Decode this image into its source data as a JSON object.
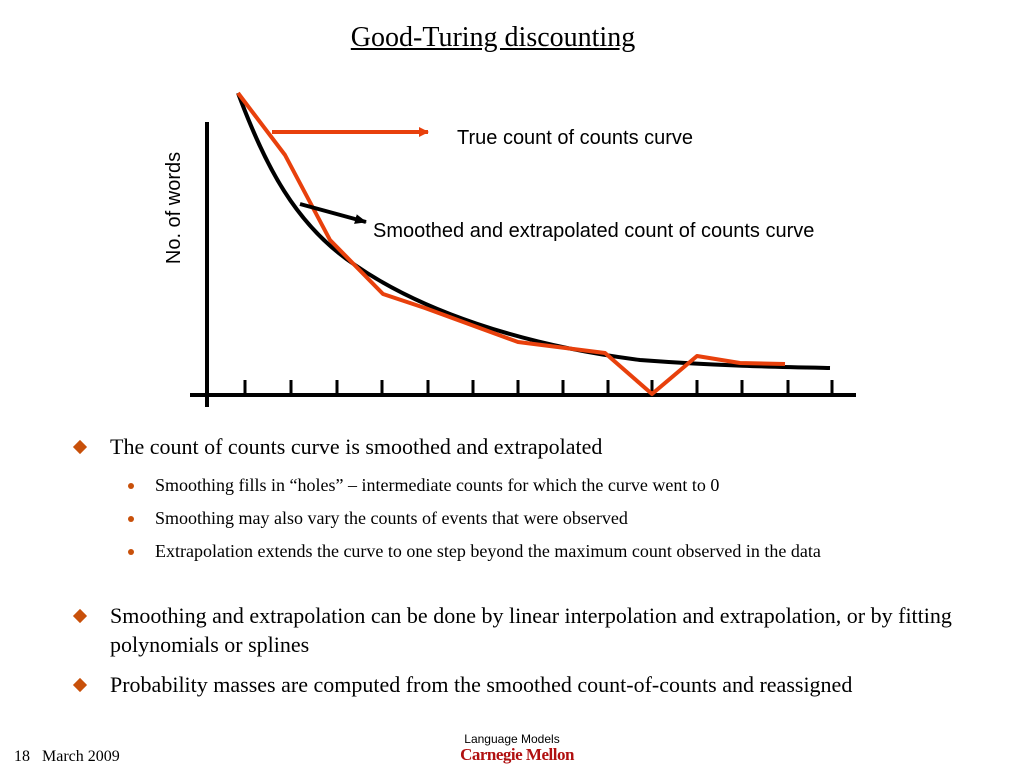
{
  "title": "Good-Turing discounting",
  "figure": {
    "y_label": "No. of words",
    "annotations": [
      "True count of counts curve",
      "Smoothed and extrapolated count of counts curve"
    ]
  },
  "bullets": [
    {
      "text": "The count of counts curve is smoothed and extrapolated",
      "sub": [
        "Smoothing fills in “holes” – intermediate counts for which the curve went to 0",
        "Smoothing may also vary the counts of events that were observed",
        "Extrapolation extends the curve to one step beyond the maximum count observed in the data"
      ]
    },
    {
      "text": "Smoothing and extrapolation can be done by linear interpolation and extrapolation, or by fitting polynomials or splines"
    },
    {
      "text": "Probability masses are computed from the smoothed count-of-counts and reassigned"
    }
  ],
  "footer": {
    "page": "18",
    "date": "March 2009",
    "center": "Language Models",
    "logo": "Carnegie Mellon"
  }
}
